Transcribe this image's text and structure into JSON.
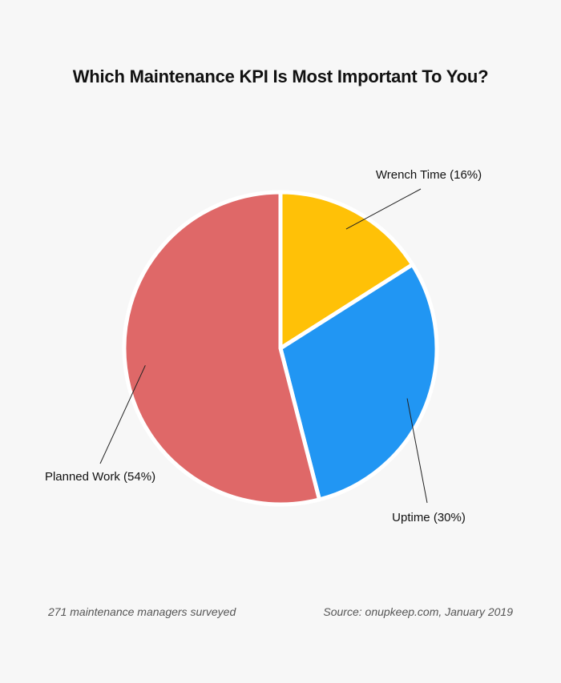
{
  "title": "Which Maintenance KPI Is Most Important To You?",
  "chart_data": {
    "type": "pie",
    "title": "Which Maintenance KPI Is Most Important To You?",
    "slices": [
      {
        "label": "Wrench Time (16%)",
        "name": "Wrench Time",
        "value": 16,
        "color": "#FFC107"
      },
      {
        "label": "Uptime (30%)",
        "name": "Uptime",
        "value": 30,
        "color": "#2196F3"
      },
      {
        "label": "Planned Work (54%)",
        "name": "Planned Work",
        "value": 54,
        "color": "#DF6868"
      }
    ]
  },
  "footnotes": {
    "left": "271 maintenance managers surveyed",
    "right": "Source: onupkeep.com, January 2019"
  }
}
